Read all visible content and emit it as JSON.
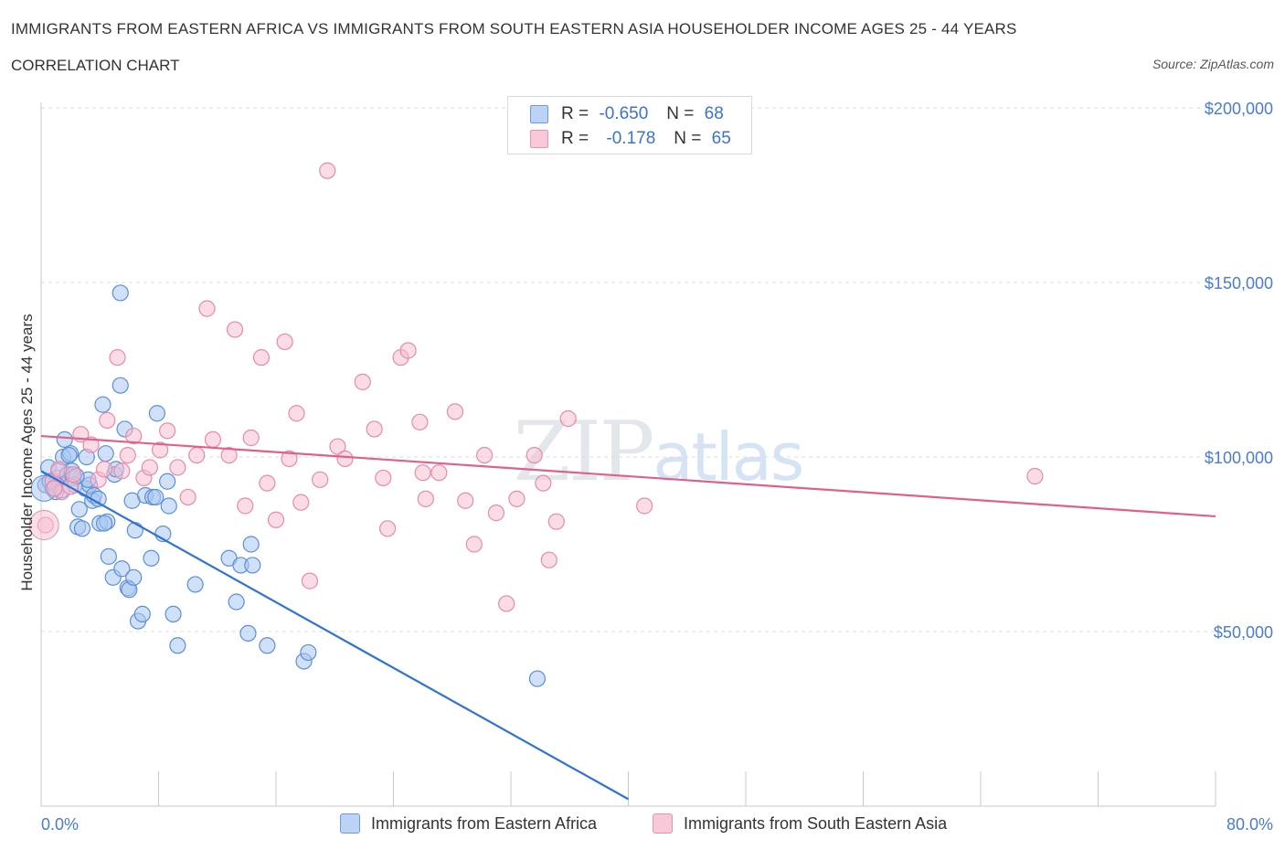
{
  "header": {
    "title": "IMMIGRANTS FROM EASTERN AFRICA VS IMMIGRANTS FROM SOUTH EASTERN ASIA HOUSEHOLDER INCOME AGES 25 - 44 YEARS",
    "subtitle": "CORRELATION CHART",
    "source": "Source: ZipAtlas.com"
  },
  "watermark": "ZIPatlas",
  "legend": {
    "rows": [
      {
        "r_label": "R =",
        "r_value": "-0.650",
        "n_label": "N =",
        "n_value": "68"
      },
      {
        "r_label": "R =",
        "r_value": "-0.178",
        "n_label": "N =",
        "n_value": "65"
      }
    ]
  },
  "bottom_legend": {
    "series_a": "Immigrants from Eastern Africa",
    "series_b": "Immigrants from South Eastern Asia"
  },
  "colors": {
    "blue_fill": "#a9c6f0",
    "blue_stroke": "#5a8fd8",
    "blue_line": "#2f72d6",
    "pink_fill": "#f6bfd1",
    "pink_stroke": "#e88aa9",
    "pink_line": "#e0608c",
    "axis_text": "#4a7bd0",
    "grid": "#dcdcdc"
  },
  "chart_data": {
    "type": "scatter",
    "xlabel": "",
    "ylabel": "Householder Income Ages 25 - 44 years",
    "xlim": [
      0,
      80
    ],
    "ylim": [
      0,
      200000
    ],
    "x_tick_labels": [
      "0.0%",
      "80.0%"
    ],
    "y_ticks": [
      50000,
      100000,
      150000,
      200000
    ],
    "y_tick_labels": [
      "$50,000",
      "$100,000",
      "$150,000",
      "$200,000"
    ],
    "grid": "horizontal dashed",
    "series": [
      {
        "name": "Immigrants from Eastern Africa",
        "color": "blue",
        "trend": {
          "x": [
            0,
            40
          ],
          "y": [
            96000,
            2000
          ]
        },
        "points": [
          [
            0.3,
            92000
          ],
          [
            0.5,
            97000
          ],
          [
            0.6,
            93000
          ],
          [
            0.8,
            91000
          ],
          [
            1.0,
            90000
          ],
          [
            1.1,
            94000
          ],
          [
            1.2,
            96000
          ],
          [
            1.4,
            90500
          ],
          [
            1.5,
            100000
          ],
          [
            1.6,
            105000
          ],
          [
            1.8,
            95000
          ],
          [
            2.0,
            101000
          ],
          [
            2.1,
            96000
          ],
          [
            2.2,
            94000
          ],
          [
            2.3,
            92000
          ],
          [
            2.5,
            80000
          ],
          [
            2.6,
            85000
          ],
          [
            2.8,
            79500
          ],
          [
            3.0,
            91000
          ],
          [
            3.1,
            100000
          ],
          [
            3.3,
            92000
          ],
          [
            3.5,
            87500
          ],
          [
            3.6,
            89000
          ],
          [
            3.9,
            88000
          ],
          [
            4.0,
            81000
          ],
          [
            4.2,
            115000
          ],
          [
            4.4,
            101000
          ],
          [
            4.5,
            81500
          ],
          [
            4.6,
            71500
          ],
          [
            4.9,
            65500
          ],
          [
            5.0,
            95000
          ],
          [
            5.1,
            96500
          ],
          [
            5.4,
            120500
          ],
          [
            5.5,
            68000
          ],
          [
            5.7,
            108000
          ],
          [
            5.9,
            62500
          ],
          [
            6.0,
            62000
          ],
          [
            6.2,
            87500
          ],
          [
            6.3,
            65500
          ],
          [
            6.4,
            79000
          ],
          [
            6.6,
            53000
          ],
          [
            6.9,
            55000
          ],
          [
            7.1,
            89000
          ],
          [
            7.5,
            71000
          ],
          [
            7.6,
            88500
          ],
          [
            7.8,
            88500
          ],
          [
            7.9,
            112500
          ],
          [
            8.3,
            78000
          ],
          [
            8.6,
            93000
          ],
          [
            8.7,
            86000
          ],
          [
            9.0,
            55000
          ],
          [
            9.3,
            46000
          ],
          [
            10.5,
            63500
          ],
          [
            12.8,
            71000
          ],
          [
            13.3,
            58500
          ],
          [
            13.6,
            69000
          ],
          [
            14.1,
            49500
          ],
          [
            14.3,
            75000
          ],
          [
            14.4,
            69000
          ],
          [
            15.4,
            46000
          ],
          [
            17.9,
            41500
          ],
          [
            18.2,
            44000
          ],
          [
            33.8,
            36500
          ],
          [
            5.4,
            147000
          ],
          [
            4.3,
            81000
          ],
          [
            3.2,
            93500
          ],
          [
            1.9,
            100500
          ],
          [
            2.4,
            94500
          ]
        ]
      },
      {
        "name": "Immigrants from South Eastern Asia",
        "color": "pink",
        "trend": {
          "x": [
            0,
            80
          ],
          "y": [
            106000,
            83000
          ]
        },
        "points": [
          [
            0.3,
            80500
          ],
          [
            0.8,
            93000
          ],
          [
            1.2,
            96500
          ],
          [
            1.4,
            90000
          ],
          [
            2.0,
            91500
          ],
          [
            2.7,
            106500
          ],
          [
            3.4,
            103500
          ],
          [
            3.9,
            93500
          ],
          [
            4.5,
            110500
          ],
          [
            5.2,
            128500
          ],
          [
            5.5,
            96000
          ],
          [
            5.9,
            100500
          ],
          [
            6.3,
            106000
          ],
          [
            7.0,
            94000
          ],
          [
            7.4,
            97000
          ],
          [
            8.1,
            102000
          ],
          [
            8.6,
            107500
          ],
          [
            9.3,
            97000
          ],
          [
            10.0,
            88500
          ],
          [
            10.6,
            100500
          ],
          [
            11.3,
            142500
          ],
          [
            11.7,
            105000
          ],
          [
            12.8,
            100500
          ],
          [
            13.2,
            136500
          ],
          [
            13.9,
            86000
          ],
          [
            14.3,
            105500
          ],
          [
            15.0,
            128500
          ],
          [
            15.4,
            92500
          ],
          [
            16.0,
            82000
          ],
          [
            16.6,
            133000
          ],
          [
            16.9,
            99500
          ],
          [
            17.4,
            112500
          ],
          [
            17.7,
            87000
          ],
          [
            18.3,
            64500
          ],
          [
            19.0,
            93500
          ],
          [
            19.5,
            182000
          ],
          [
            20.2,
            103000
          ],
          [
            20.7,
            99500
          ],
          [
            21.9,
            121500
          ],
          [
            22.7,
            108000
          ],
          [
            23.3,
            94000
          ],
          [
            23.6,
            79500
          ],
          [
            24.5,
            128500
          ],
          [
            25.0,
            130500
          ],
          [
            25.8,
            110000
          ],
          [
            26.2,
            88000
          ],
          [
            27.1,
            95500
          ],
          [
            28.2,
            113000
          ],
          [
            28.9,
            87500
          ],
          [
            29.5,
            75000
          ],
          [
            30.2,
            100500
          ],
          [
            31.0,
            84000
          ],
          [
            31.7,
            58000
          ],
          [
            32.4,
            88000
          ],
          [
            33.6,
            100500
          ],
          [
            34.2,
            92500
          ],
          [
            34.6,
            70500
          ],
          [
            35.1,
            81500
          ],
          [
            35.9,
            111000
          ],
          [
            41.1,
            86000
          ],
          [
            67.7,
            94500
          ],
          [
            26.0,
            95500
          ],
          [
            2.2,
            95000
          ],
          [
            0.9,
            91000
          ],
          [
            4.3,
            96500
          ]
        ]
      }
    ]
  }
}
